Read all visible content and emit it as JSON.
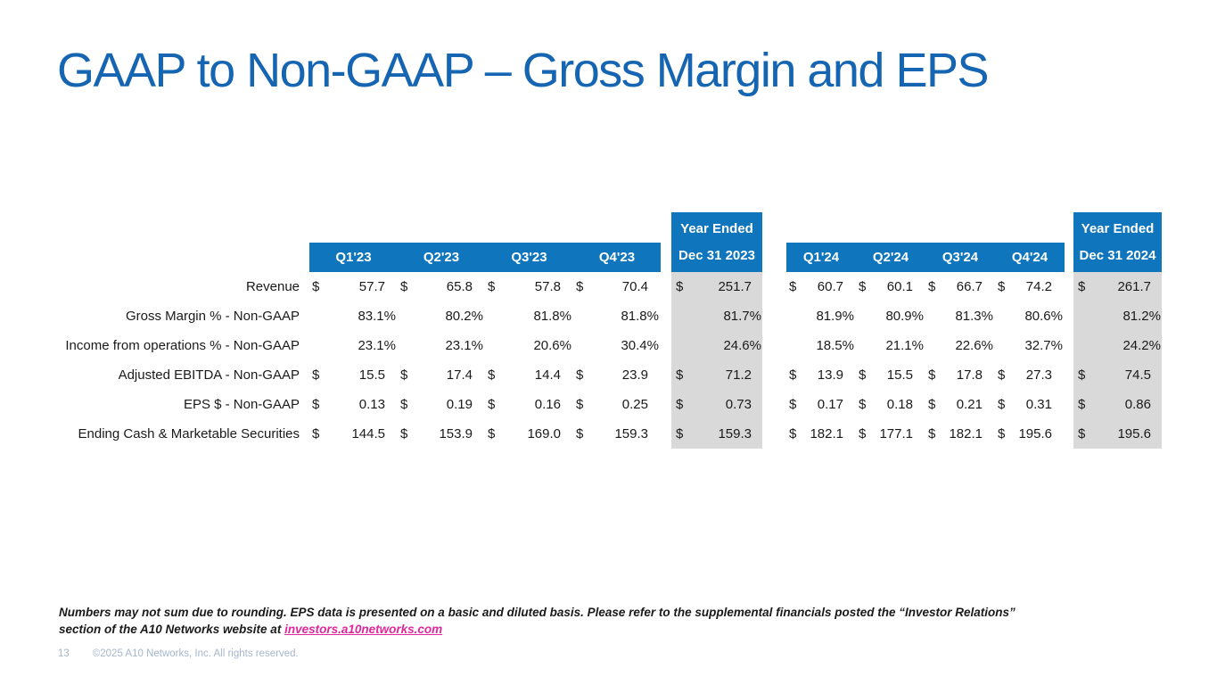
{
  "title": "GAAP to Non-GAAP – Gross Margin and EPS",
  "currency_symbol": "$",
  "colors": {
    "header_blue": "#0F75BC",
    "title_blue": "#1565B2",
    "year_column_gray": "#D9D9D9",
    "link_magenta": "#E0269B",
    "footer_gray": "#A6B6CB"
  },
  "table": {
    "groups": [
      {
        "quarters": [
          "Q1'23",
          "Q2'23",
          "Q3'23",
          "Q4'23"
        ],
        "year_header_line1": "Year Ended",
        "year_header_line2": "Dec 31 2023"
      },
      {
        "quarters": [
          "Q1'24",
          "Q2'24",
          "Q3'24",
          "Q4'24"
        ],
        "year_header_line1": "Year Ended",
        "year_header_line2": "Dec 31 2024"
      }
    ],
    "rows": [
      {
        "label": "Revenue",
        "currency": true,
        "q2023": [
          "57.7",
          "65.8",
          "57.8",
          "70.4"
        ],
        "fy2023": "251.7",
        "q2024": [
          "60.7",
          "60.1",
          "66.7",
          "74.2"
        ],
        "fy2024": "261.7"
      },
      {
        "label": "Gross Margin % - Non-GAAP",
        "currency": false,
        "q2023": [
          "83.1%",
          "80.2%",
          "81.8%",
          "81.8%"
        ],
        "fy2023": "81.7%",
        "q2024": [
          "81.9%",
          "80.9%",
          "81.3%",
          "80.6%"
        ],
        "fy2024": "81.2%"
      },
      {
        "label": "Income from operations % - Non-GAAP",
        "currency": false,
        "q2023": [
          "23.1%",
          "23.1%",
          "20.6%",
          "30.4%"
        ],
        "fy2023": "24.6%",
        "q2024": [
          "18.5%",
          "21.1%",
          "22.6%",
          "32.7%"
        ],
        "fy2024": "24.2%"
      },
      {
        "label": "Adjusted EBITDA - Non-GAAP",
        "currency": true,
        "q2023": [
          "15.5",
          "17.4",
          "14.4",
          "23.9"
        ],
        "fy2023": "71.2",
        "q2024": [
          "13.9",
          "15.5",
          "17.8",
          "27.3"
        ],
        "fy2024": "74.5"
      },
      {
        "label": "EPS $ - Non-GAAP",
        "currency": true,
        "q2023": [
          "0.13",
          "0.19",
          "0.16",
          "0.25"
        ],
        "fy2023": "0.73",
        "q2024": [
          "0.17",
          "0.18",
          "0.21",
          "0.31"
        ],
        "fy2024": "0.86"
      },
      {
        "label": "Ending Cash & Marketable Securities",
        "currency": true,
        "q2023": [
          "144.5",
          "153.9",
          "169.0",
          "159.3"
        ],
        "fy2023": "159.3",
        "q2024": [
          "182.1",
          "177.1",
          "182.1",
          "195.6"
        ],
        "fy2024": "195.6"
      }
    ]
  },
  "footnote": {
    "text_before_link": "Numbers may not sum due to rounding.  EPS data is presented on a basic and diluted basis.  Please refer to the supplemental financials posted the “Investor Relations” section of the A10 Networks website at ",
    "link_text": "investors.a10networks.com"
  },
  "footer": {
    "page_number": "13",
    "copyright": "©2025 A10 Networks, Inc. All rights reserved."
  }
}
